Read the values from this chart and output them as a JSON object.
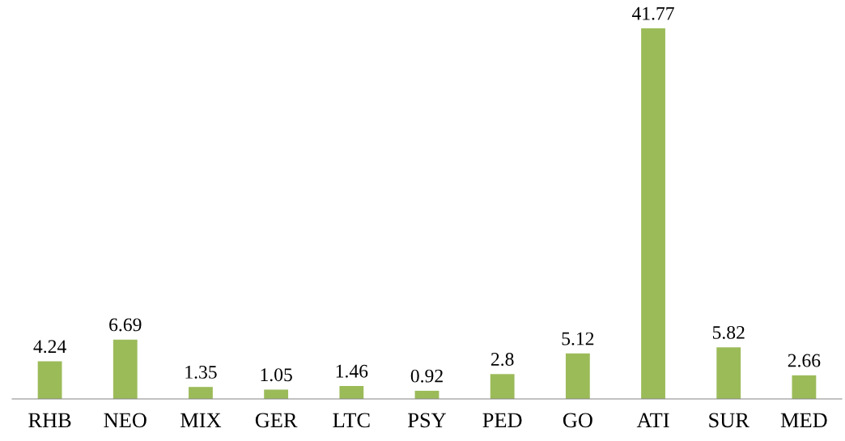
{
  "chart_data": {
    "type": "bar",
    "categories": [
      "RHB",
      "NEO",
      "MIX",
      "GER",
      "LTC",
      "PSY",
      "PED",
      "GO",
      "ATI",
      "SUR",
      "MED"
    ],
    "values": [
      4.24,
      6.69,
      1.35,
      1.05,
      1.46,
      0.92,
      2.8,
      5.12,
      41.77,
      5.82,
      2.66
    ],
    "value_labels": [
      "4.24",
      "6.69",
      "1.35",
      "1.05",
      "1.46",
      "0.92",
      "2.8",
      "5.12",
      "41.77",
      "5.82",
      "2.66"
    ],
    "color": "#9bbb59",
    "data_labels": true,
    "grid": false,
    "legend": false
  }
}
